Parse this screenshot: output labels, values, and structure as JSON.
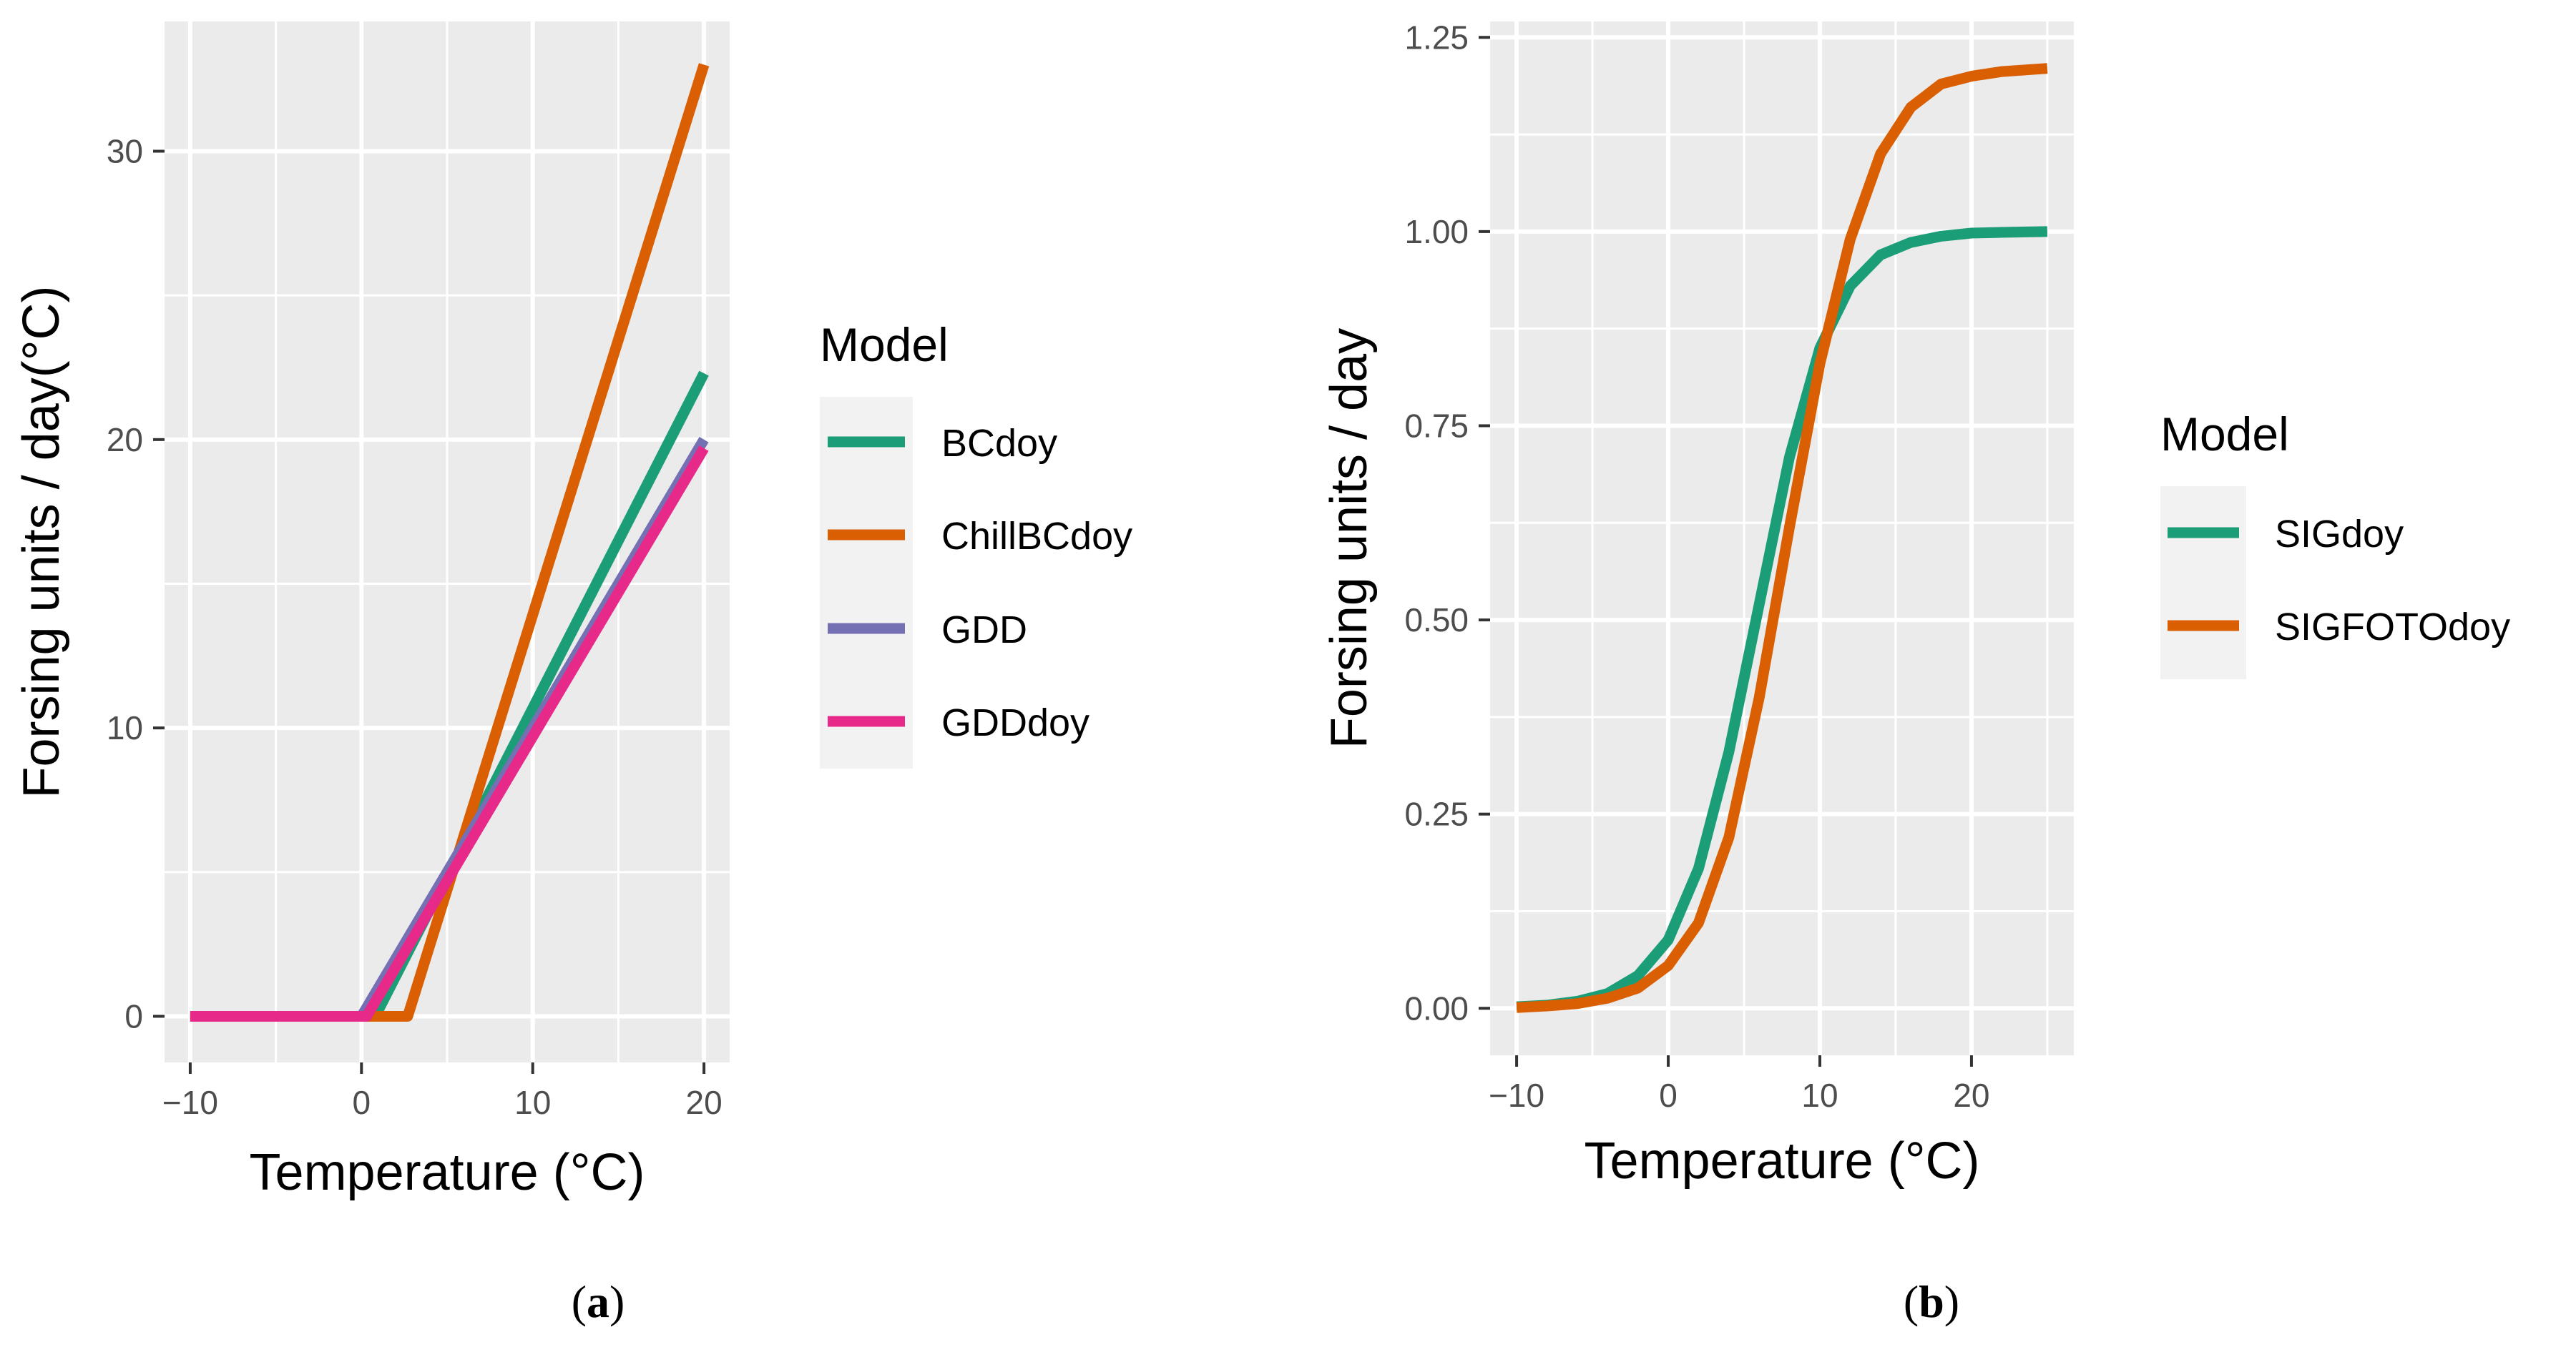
{
  "chart_data": [
    {
      "type": "line",
      "panel_label": "a",
      "caption_open": "(",
      "caption_close": ")",
      "xlabel": "Temperature (°C)",
      "ylabel": "Forsing units / day(°C)",
      "xlim": [
        -11.5,
        21.5
      ],
      "ylim": [
        -1.6,
        34.5
      ],
      "xticks": [
        -10,
        0,
        10,
        20
      ],
      "xtick_labels": [
        "−10",
        "0",
        "10",
        "20"
      ],
      "yticks": [
        0,
        10,
        20,
        30
      ],
      "ytick_labels": [
        "0",
        "10",
        "20",
        "30"
      ],
      "legend_title": "Model",
      "legend_position": "right",
      "series": [
        {
          "name": "BCdoy",
          "color": "#1b9e77",
          "x": [
            -10,
            0.8,
            20
          ],
          "y": [
            0,
            0,
            22.3
          ]
        },
        {
          "name": "ChillBCdoy",
          "color": "#d95f02",
          "x": [
            -10,
            2.7,
            20
          ],
          "y": [
            0,
            0,
            33
          ]
        },
        {
          "name": "GDD",
          "color": "#7570b3",
          "x": [
            -10,
            0,
            20
          ],
          "y": [
            0,
            0,
            20
          ]
        },
        {
          "name": "GDDdoy",
          "color": "#e7298a",
          "x": [
            -10,
            0.3,
            20
          ],
          "y": [
            0,
            0,
            19.7
          ]
        }
      ]
    },
    {
      "type": "line",
      "panel_label": "b",
      "caption_open": "(",
      "caption_close": ")",
      "xlabel": "Temperature (°C)",
      "ylabel": "Forsing units / day",
      "xlim": [
        -11.75,
        26.75
      ],
      "ylim": [
        -0.0605,
        1.2705
      ],
      "xticks": [
        -10,
        0,
        10,
        20
      ],
      "xtick_labels": [
        "−10",
        "0",
        "10",
        "20"
      ],
      "yticks": [
        0,
        0.25,
        0.5,
        0.75,
        1.0,
        1.25
      ],
      "ytick_labels": [
        "0.00",
        "0.25",
        "0.50",
        "0.75",
        "1.00",
        "1.25"
      ],
      "legend_title": "Model",
      "legend_position": "right",
      "series": [
        {
          "name": "SIGdoy",
          "color": "#1b9e77",
          "x": [
            -10,
            -8,
            -6,
            -4,
            -2,
            0,
            2,
            4,
            6,
            8,
            10,
            12,
            14,
            16,
            18,
            20,
            22,
            25
          ],
          "y": [
            0.002,
            0.004,
            0.009,
            0.019,
            0.042,
            0.088,
            0.18,
            0.33,
            0.52,
            0.71,
            0.85,
            0.93,
            0.97,
            0.986,
            0.994,
            0.998,
            0.999,
            1.0
          ]
        },
        {
          "name": "SIGFOTOdoy",
          "color": "#d95f02",
          "x": [
            -10,
            -8,
            -6,
            -4,
            -2,
            0,
            2,
            4,
            6,
            8,
            10,
            12,
            14,
            16,
            18,
            20,
            22,
            25
          ],
          "y": [
            0.001,
            0.003,
            0.006,
            0.013,
            0.026,
            0.055,
            0.11,
            0.22,
            0.4,
            0.62,
            0.83,
            0.99,
            1.1,
            1.16,
            1.19,
            1.2,
            1.206,
            1.21
          ]
        }
      ]
    }
  ]
}
